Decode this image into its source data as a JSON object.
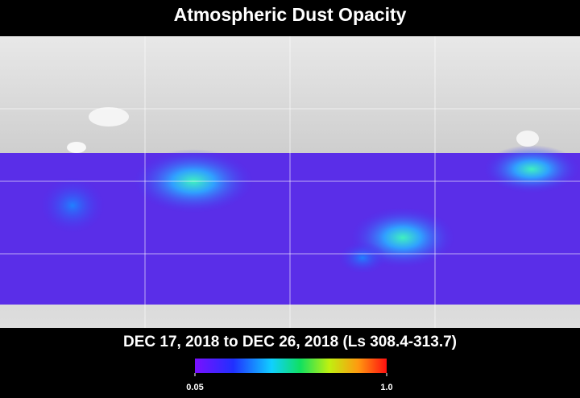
{
  "title": "Atmospheric Dust Opacity",
  "subtitle": "DEC 17, 2018 to DEC 26, 2018 (Ls 308.4-313.7)",
  "colorbar": {
    "lim": [
      0.05,
      1
    ],
    "ticks": [
      0.05,
      {
        "value": 1,
        "label": "1.0"
      }
    ]
  }
}
